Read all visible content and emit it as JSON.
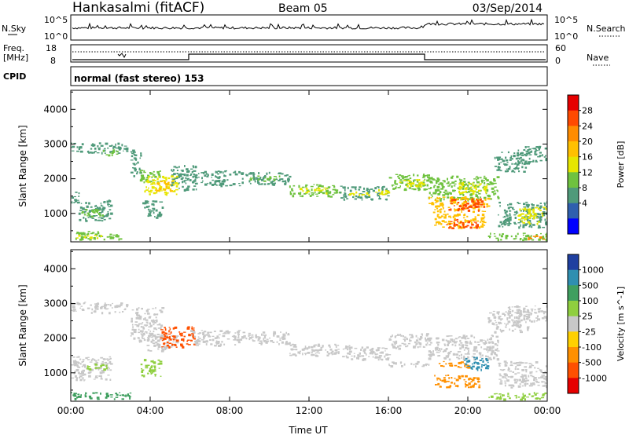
{
  "header": {
    "site": "Hankasalmi (fitACF)",
    "beam": "Beam 05",
    "date": "03/Sep/2014"
  },
  "nsky": {
    "label": "N.Sky",
    "ticks": [
      "10^5",
      "10^0"
    ]
  },
  "nsearch": {
    "label": "N.Search",
    "ticks": [
      "10^5",
      "10^0"
    ]
  },
  "freq": {
    "label_line1": "Freq.",
    "label_line2": "[MHz]",
    "ticks": [
      "18",
      "8"
    ]
  },
  "nave": {
    "label": "Nave",
    "ticks": [
      "60",
      "0"
    ]
  },
  "cpid": {
    "label": "CPID",
    "text": "normal (fast stereo) 153"
  },
  "chart_data": [
    {
      "type": "heatmap",
      "name": "power",
      "ylabel": "Slant Range [km]",
      "xlabel": "Time UT",
      "yticks": [
        1000,
        2000,
        3000,
        4000
      ],
      "ylim": [
        180,
        4550
      ],
      "xticks": [
        "00:00",
        "04:00",
        "08:00",
        "12:00",
        "16:00",
        "20:00",
        "00:00"
      ],
      "colorbar": {
        "label": "Power [dB]",
        "ticks": [
          "28",
          "24",
          "20",
          "16",
          "12",
          "8",
          "4"
        ],
        "colors": [
          "#e60000",
          "#ff4a00",
          "#ff8c00",
          "#ffc000",
          "#e6e600",
          "#6fc23f",
          "#4f9a7a",
          "#2f5fae",
          "#0000ff"
        ]
      },
      "bands": [
        {
          "t0": 0.0,
          "t1": 2.8,
          "r0": 2750,
          "r1": 3050,
          "level": 8
        },
        {
          "t0": 1.5,
          "t1": 2.4,
          "r0": 2700,
          "r1": 2850,
          "level": 12
        },
        {
          "t0": 0.0,
          "t1": 0.4,
          "r0": 1300,
          "r1": 1650,
          "level": 10
        },
        {
          "t0": 0.3,
          "t1": 2.0,
          "r0": 800,
          "r1": 1400,
          "level": 8
        },
        {
          "t0": 0.5,
          "t1": 1.6,
          "r0": 900,
          "r1": 1150,
          "level": 12
        },
        {
          "t0": 0.0,
          "t1": 2.5,
          "r0": 250,
          "r1": 500,
          "level": 12
        },
        {
          "t0": 0.2,
          "t1": 1.5,
          "r0": 300,
          "r1": 400,
          "level": 18
        },
        {
          "t0": 3.0,
          "t1": 3.5,
          "r0": 2100,
          "r1": 2900,
          "level": 8
        },
        {
          "t0": 3.4,
          "t1": 4.5,
          "r0": 1900,
          "r1": 2300,
          "level": 12
        },
        {
          "t0": 3.7,
          "t1": 5.4,
          "r0": 1550,
          "r1": 2100,
          "level": 16
        },
        {
          "t0": 4.2,
          "t1": 5.2,
          "r0": 1650,
          "r1": 1950,
          "level": 20
        },
        {
          "t0": 3.6,
          "t1": 4.6,
          "r0": 900,
          "r1": 1400,
          "level": 8
        },
        {
          "t0": 5.0,
          "t1": 6.3,
          "r0": 1700,
          "r1": 2400,
          "level": 10
        },
        {
          "t0": 6.0,
          "t1": 8.5,
          "r0": 2050,
          "r1": 2250,
          "level": 10
        },
        {
          "t0": 6.5,
          "t1": 8.5,
          "r0": 1800,
          "r1": 2000,
          "level": 8
        },
        {
          "t0": 8.5,
          "t1": 11.0,
          "r0": 1850,
          "r1": 2200,
          "level": 10
        },
        {
          "t0": 9.0,
          "t1": 10.5,
          "r0": 1950,
          "r1": 2100,
          "level": 14
        },
        {
          "t0": 11.0,
          "t1": 13.5,
          "r0": 1500,
          "r1": 1850,
          "level": 12
        },
        {
          "t0": 11.5,
          "t1": 13.0,
          "r0": 1600,
          "r1": 1750,
          "level": 16
        },
        {
          "t0": 13.5,
          "t1": 16.0,
          "r0": 1400,
          "r1": 1800,
          "level": 10
        },
        {
          "t0": 14.0,
          "t1": 16.0,
          "r0": 1550,
          "r1": 1700,
          "level": 16
        },
        {
          "t0": 16.0,
          "t1": 18.0,
          "r0": 1700,
          "r1": 2150,
          "level": 12
        },
        {
          "t0": 16.5,
          "t1": 17.8,
          "r0": 1800,
          "r1": 2000,
          "level": 18
        },
        {
          "t0": 18.0,
          "t1": 21.5,
          "r0": 1400,
          "r1": 2100,
          "level": 12
        },
        {
          "t0": 19.5,
          "t1": 21.0,
          "r0": 1600,
          "r1": 1900,
          "level": 18
        },
        {
          "t0": 18.0,
          "t1": 21.0,
          "r0": 1050,
          "r1": 1500,
          "level": 20
        },
        {
          "t0": 19.0,
          "t1": 20.8,
          "r0": 1100,
          "r1": 1450,
          "level": 27
        },
        {
          "t0": 18.3,
          "t1": 20.8,
          "r0": 600,
          "r1": 1000,
          "level": 22
        },
        {
          "t0": 18.8,
          "t1": 20.5,
          "r0": 600,
          "r1": 850,
          "level": 29
        },
        {
          "t0": 21.3,
          "t1": 23.0,
          "r0": 2200,
          "r1": 2800,
          "level": 8
        },
        {
          "t0": 22.5,
          "t1": 24.0,
          "r0": 2500,
          "r1": 2950,
          "level": 10
        },
        {
          "t0": 21.5,
          "t1": 24.0,
          "r0": 600,
          "r1": 1350,
          "level": 10
        },
        {
          "t0": 22.5,
          "t1": 24.0,
          "r0": 700,
          "r1": 1200,
          "level": 18
        },
        {
          "t0": 21.0,
          "t1": 24.0,
          "r0": 250,
          "r1": 450,
          "level": 14
        },
        {
          "t0": 23.0,
          "t1": 24.0,
          "r0": 260,
          "r1": 400,
          "level": 24
        }
      ]
    },
    {
      "type": "heatmap",
      "name": "velocity",
      "ylabel": "Slant Range [km]",
      "xlabel": "Time UT",
      "yticks": [
        1000,
        2000,
        3000,
        4000
      ],
      "ylim": [
        180,
        4550
      ],
      "xticks": [
        "00:00",
        "04:00",
        "08:00",
        "12:00",
        "16:00",
        "20:00",
        "00:00"
      ],
      "colorbar": {
        "label": "Velocity [m s^-1]",
        "ticks": [
          "1000",
          "500",
          "100",
          "25",
          "-25",
          "-100",
          "-500",
          "-1000"
        ],
        "colors": [
          "#1f3fa0",
          "#2f8fb0",
          "#3f9f5f",
          "#8fcf3f",
          "#c8c8c8",
          "#ffd000",
          "#ff9000",
          "#ff5000",
          "#e60000"
        ]
      },
      "bands": [
        {
          "t0": 0.0,
          "t1": 2.8,
          "r0": 2750,
          "r1": 3050,
          "level": 0
        },
        {
          "t0": 0.0,
          "t1": 2.0,
          "r0": 800,
          "r1": 1500,
          "level": 0
        },
        {
          "t0": 0.8,
          "t1": 1.8,
          "r0": 1100,
          "r1": 1300,
          "level": 60
        },
        {
          "t0": 0.0,
          "t1": 3.0,
          "r0": 250,
          "r1": 450,
          "level": 150
        },
        {
          "t0": 3.0,
          "t1": 4.6,
          "r0": 1900,
          "r1": 2900,
          "level": 0
        },
        {
          "t0": 3.5,
          "t1": 4.5,
          "r0": 900,
          "r1": 1400,
          "level": 60
        },
        {
          "t0": 3.8,
          "t1": 5.4,
          "r0": 1650,
          "r1": 2100,
          "level": 0
        },
        {
          "t0": 4.5,
          "t1": 6.2,
          "r0": 1750,
          "r1": 2350,
          "level": -500
        },
        {
          "t0": 6.0,
          "t1": 8.5,
          "r0": 1800,
          "r1": 2250,
          "level": 0
        },
        {
          "t0": 8.5,
          "t1": 11.0,
          "r0": 1850,
          "r1": 2200,
          "level": 0
        },
        {
          "t0": 11.0,
          "t1": 13.5,
          "r0": 1500,
          "r1": 1850,
          "level": 0
        },
        {
          "t0": 13.5,
          "t1": 16.0,
          "r0": 1400,
          "r1": 1800,
          "level": 0
        },
        {
          "t0": 16.0,
          "t1": 18.0,
          "r0": 1700,
          "r1": 2150,
          "level": 0
        },
        {
          "t0": 18.0,
          "t1": 21.5,
          "r0": 1400,
          "r1": 2100,
          "level": 0
        },
        {
          "t0": 19.8,
          "t1": 21.0,
          "r0": 1100,
          "r1": 1500,
          "level": 600
        },
        {
          "t0": 18.5,
          "t1": 20.0,
          "r0": 1150,
          "r1": 1350,
          "level": -200
        },
        {
          "t0": 18.3,
          "t1": 20.6,
          "r0": 600,
          "r1": 950,
          "level": -200
        },
        {
          "t0": 21.0,
          "t1": 23.0,
          "r0": 2200,
          "r1": 2800,
          "level": 0
        },
        {
          "t0": 22.0,
          "t1": 24.0,
          "r0": 2500,
          "r1": 2950,
          "level": 0
        },
        {
          "t0": 21.5,
          "t1": 24.0,
          "r0": 600,
          "r1": 1350,
          "level": 0
        },
        {
          "t0": 21.0,
          "t1": 24.0,
          "r0": 250,
          "r1": 450,
          "level": 40
        },
        {
          "t0": 16.0,
          "t1": 18.0,
          "r0": 1200,
          "r1": 1350,
          "level": 0
        }
      ]
    }
  ]
}
